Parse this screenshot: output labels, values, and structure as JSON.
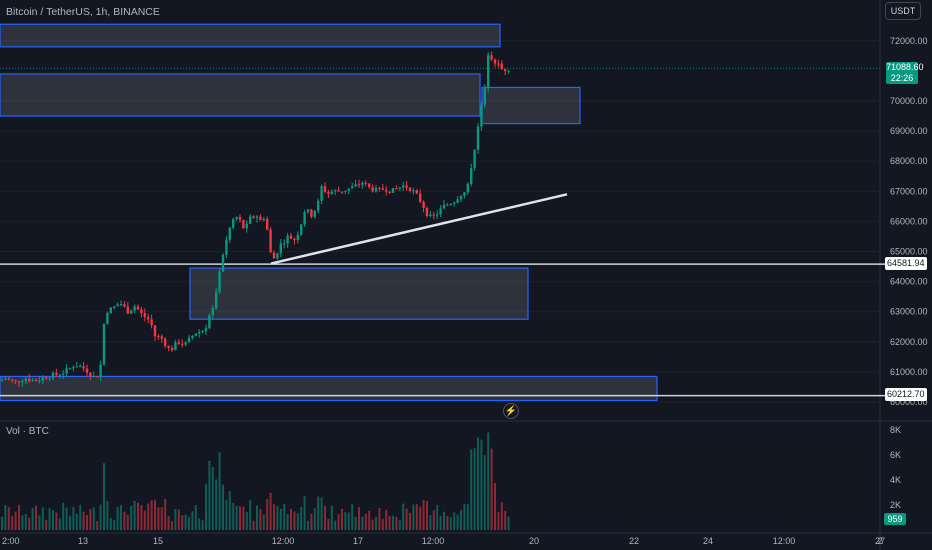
{
  "header": {
    "symbol": "Bitcoin / TetherUS, 1h, BINANCE"
  },
  "controls": {
    "currency": "USDT"
  },
  "price_axis": {
    "labels": [
      "72000.00",
      "70000.00",
      "69000.00",
      "68000.00",
      "67000.00",
      "66000.00",
      "65000.00",
      "64000.00",
      "63000.00",
      "62000.00",
      "61000.00",
      "60000.00"
    ]
  },
  "last_price": {
    "value": "71088.60",
    "countdown": "22:26"
  },
  "horizontal_lines": [
    {
      "value": "64581.94"
    },
    {
      "value": "60212.70"
    }
  ],
  "time_axis": {
    "labels": [
      "2:00",
      "13",
      "15",
      "12:00",
      "17",
      "12:00",
      "20",
      "22",
      "24",
      "12:00",
      "27",
      "2"
    ]
  },
  "volume_pane": {
    "label": "Vol · BTC",
    "axis": [
      "8K",
      "6K",
      "4K",
      "2K"
    ],
    "last": "959"
  },
  "colors": {
    "up": "#089981",
    "down": "#f23645",
    "zone": "#2962ff",
    "background": "#131722"
  },
  "icons": [
    "lightning-icon"
  ],
  "chart_data": {
    "type": "candlestick",
    "title": "Bitcoin / TetherUS, 1h, BINANCE",
    "ylim": [
      59800,
      72600
    ],
    "path": [
      [
        0,
        60700
      ],
      [
        5,
        60800
      ],
      [
        15,
        60650
      ],
      [
        25,
        60800
      ],
      [
        35,
        60700
      ],
      [
        45,
        60850
      ],
      [
        55,
        60900
      ],
      [
        65,
        61000
      ],
      [
        75,
        61250
      ],
      [
        85,
        61100
      ],
      [
        95,
        60800
      ],
      [
        100,
        61000
      ],
      [
        105,
        63000
      ],
      [
        112,
        63100
      ],
      [
        120,
        63300
      ],
      [
        128,
        63000
      ],
      [
        135,
        63200
      ],
      [
        142,
        62900
      ],
      [
        150,
        62700
      ],
      [
        155,
        62200
      ],
      [
        162,
        62100
      ],
      [
        170,
        61700
      ],
      [
        178,
        62000
      ],
      [
        185,
        61900
      ],
      [
        195,
        62300
      ],
      [
        205,
        62400
      ],
      [
        210,
        63000
      ],
      [
        215,
        63300
      ],
      [
        220,
        64500
      ],
      [
        225,
        65200
      ],
      [
        230,
        65800
      ],
      [
        235,
        66200
      ],
      [
        240,
        66000
      ],
      [
        245,
        65700
      ],
      [
        250,
        66100
      ],
      [
        258,
        66200
      ],
      [
        262,
        65900
      ],
      [
        265,
        66300
      ],
      [
        270,
        65000
      ],
      [
        273,
        64700
      ],
      [
        280,
        65200
      ],
      [
        288,
        65500
      ],
      [
        295,
        65400
      ],
      [
        300,
        65800
      ],
      [
        305,
        66400
      ],
      [
        312,
        66200
      ],
      [
        318,
        66600
      ],
      [
        322,
        67200
      ],
      [
        327,
        66900
      ],
      [
        332,
        67000
      ],
      [
        340,
        67000
      ],
      [
        350,
        67100
      ],
      [
        357,
        67200
      ],
      [
        362,
        67300
      ],
      [
        370,
        67100
      ],
      [
        378,
        67000
      ],
      [
        385,
        67100
      ],
      [
        392,
        67000
      ],
      [
        398,
        67100
      ],
      [
        404,
        67200
      ],
      [
        410,
        67100
      ],
      [
        416,
        66900
      ],
      [
        422,
        66600
      ],
      [
        428,
        66200
      ],
      [
        432,
        66100
      ],
      [
        438,
        66300
      ],
      [
        444,
        66500
      ],
      [
        450,
        66600
      ],
      [
        455,
        66700
      ],
      [
        460,
        66900
      ],
      [
        467,
        67000
      ],
      [
        472,
        68000
      ],
      [
        476,
        68700
      ],
      [
        479,
        69300
      ],
      [
        482,
        70000
      ],
      [
        485,
        70400
      ],
      [
        488,
        71600
      ],
      [
        493,
        71400
      ],
      [
        498,
        71200
      ],
      [
        503,
        71000
      ],
      [
        507,
        71100
      ],
      [
        511,
        71088.6
      ]
    ],
    "zones": [
      {
        "from": 0,
        "to": 500,
        "low": 71800,
        "high": 72550
      },
      {
        "from": 0,
        "to": 480,
        "low": 69500,
        "high": 70900
      },
      {
        "from": 482,
        "to": 580,
        "low": 69250,
        "high": 70450
      },
      {
        "from": 190,
        "to": 528,
        "low": 62750,
        "high": 64450
      },
      {
        "from": 0,
        "to": 657,
        "low": 60050,
        "high": 60850
      }
    ],
    "trendline": {
      "x1": 271,
      "y1": 64600,
      "x2": 567,
      "y2": 66900
    },
    "hlines": [
      64581.94,
      60212.7
    ],
    "volume_max": 8000
  }
}
